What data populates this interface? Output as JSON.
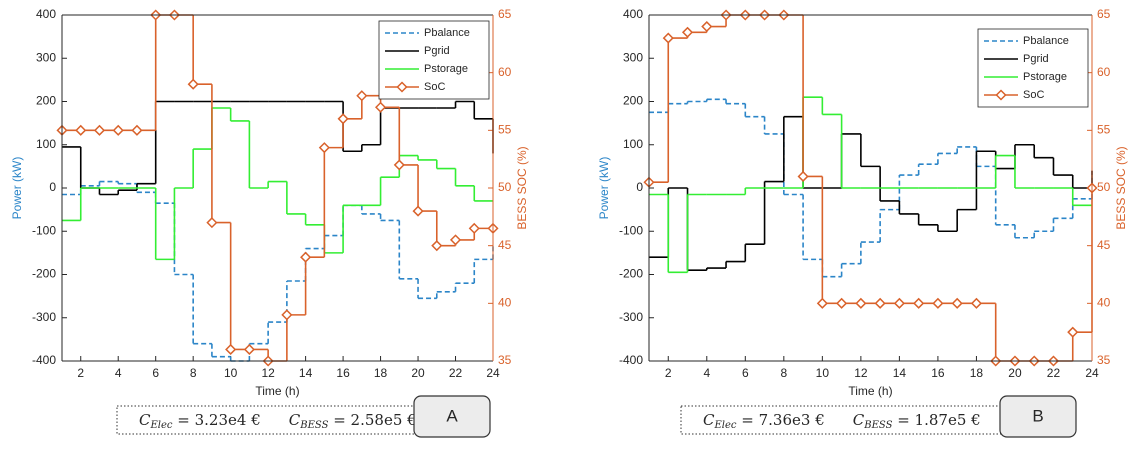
{
  "chart_data": [
    {
      "type": "stairs",
      "xlabel": "Time (h)",
      "ylabel": "Power (kW)",
      "y2label": "BESS SOC (%)",
      "x": [
        1,
        2,
        3,
        4,
        5,
        6,
        7,
        8,
        9,
        10,
        11,
        12,
        13,
        14,
        15,
        16,
        17,
        18,
        19,
        20,
        21,
        22,
        23,
        24
      ],
      "xlim": [
        1,
        24
      ],
      "xticks": [
        2,
        4,
        6,
        8,
        10,
        12,
        14,
        16,
        18,
        20,
        22,
        24
      ],
      "ylim": [
        -400,
        400
      ],
      "yticks": [
        -400,
        -300,
        -200,
        -100,
        0,
        100,
        200,
        300,
        400
      ],
      "y2lim": [
        35,
        65
      ],
      "y2ticks": [
        35,
        40,
        45,
        50,
        55,
        60,
        65
      ],
      "grid": false,
      "legend": "upper right",
      "series": [
        {
          "name": "Pbalance",
          "color": "#2b85c8",
          "dashed": true,
          "values": [
            -15,
            5,
            15,
            10,
            -10,
            -35,
            -200,
            -360,
            -390,
            -400,
            -360,
            -310,
            -215,
            -140,
            -110,
            -40,
            -60,
            -75,
            -210,
            -255,
            -240,
            -220,
            -165,
            -130
          ]
        },
        {
          "name": "Pgrid",
          "color": "#000000",
          "values": [
            95,
            0,
            -15,
            -5,
            10,
            200,
            200,
            200,
            200,
            200,
            200,
            200,
            200,
            200,
            200,
            85,
            100,
            185,
            185,
            185,
            185,
            200,
            160,
            80
          ]
        },
        {
          "name": "Pstorage",
          "color": "#33ee33",
          "values": [
            -75,
            0,
            0,
            0,
            0,
            -165,
            0,
            90,
            185,
            155,
            0,
            15,
            -60,
            -85,
            -150,
            -40,
            -40,
            25,
            75,
            65,
            45,
            5,
            -30,
            -30
          ]
        },
        {
          "name": "SoC",
          "color": "#d9622b",
          "axis": "y2",
          "marker": "diamond",
          "values": [
            55,
            55,
            55,
            55,
            55,
            65,
            65,
            59,
            47,
            36,
            36,
            35,
            39,
            44,
            53.5,
            56,
            58,
            57,
            52,
            48,
            45,
            45.5,
            46.5,
            46.5
          ]
        }
      ],
      "cost": [
        {
          "symbol": "C",
          "subscript": "Elec",
          "value": " = 3.23e4 €"
        },
        {
          "symbol": "C",
          "subscript": "BESS",
          "value": " = 2.58e5 €"
        }
      ],
      "panel": "A"
    },
    {
      "type": "stairs",
      "xlabel": "Time (h)",
      "ylabel": "Power (kW)",
      "y2label": "BESS SOC (%)",
      "x": [
        1,
        2,
        3,
        4,
        5,
        6,
        7,
        8,
        9,
        10,
        11,
        12,
        13,
        14,
        15,
        16,
        17,
        18,
        19,
        20,
        21,
        22,
        23,
        24
      ],
      "xlim": [
        1,
        24
      ],
      "xticks": [
        2,
        4,
        6,
        8,
        10,
        12,
        14,
        16,
        18,
        20,
        22,
        24
      ],
      "ylim": [
        -400,
        400
      ],
      "yticks": [
        -400,
        -300,
        -200,
        -100,
        0,
        100,
        200,
        300,
        400
      ],
      "y2lim": [
        35,
        65
      ],
      "y2ticks": [
        35,
        40,
        45,
        50,
        55,
        60,
        65
      ],
      "grid": false,
      "legend": "upper right",
      "series": [
        {
          "name": "Pbalance",
          "color": "#2b85c8",
          "dashed": true,
          "values": [
            175,
            195,
            200,
            205,
            195,
            165,
            125,
            -15,
            -165,
            -205,
            -175,
            -125,
            -50,
            30,
            55,
            80,
            95,
            50,
            -85,
            -115,
            -100,
            -70,
            -25,
            40
          ]
        },
        {
          "name": "Pgrid",
          "color": "#000000",
          "values": [
            -160,
            0,
            -190,
            -185,
            -170,
            -130,
            15,
            165,
            0,
            0,
            125,
            50,
            -30,
            -60,
            -85,
            -100,
            -50,
            85,
            45,
            100,
            70,
            30,
            0,
            40
          ]
        },
        {
          "name": "Pstorage",
          "color": "#33ee33",
          "values": [
            -15,
            -195,
            -15,
            -15,
            -15,
            0,
            0,
            0,
            210,
            170,
            0,
            0,
            0,
            0,
            0,
            0,
            0,
            0,
            75,
            0,
            0,
            0,
            -40,
            -40
          ]
        },
        {
          "name": "SoC",
          "color": "#d9622b",
          "axis": "y2",
          "marker": "diamond",
          "values": [
            50.5,
            63,
            63.5,
            64,
            65,
            65,
            65,
            65,
            51,
            40,
            40,
            40,
            40,
            40,
            40,
            40,
            40,
            40,
            35,
            35,
            35,
            35,
            37.5,
            50
          ]
        }
      ],
      "cost": [
        {
          "symbol": "C",
          "subscript": "Elec",
          "value": " = 7.36e3 €"
        },
        {
          "symbol": "C",
          "subscript": "BESS",
          "value": " = 1.87e5 €"
        }
      ],
      "panel": "B"
    }
  ]
}
